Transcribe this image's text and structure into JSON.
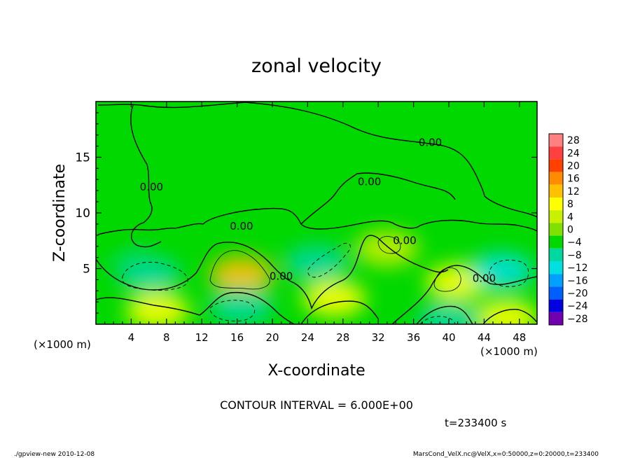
{
  "chart_data": {
    "type": "heatmap",
    "title": "zonal velocity",
    "xlabel": "X-coordinate",
    "ylabel": "Z-coordinate",
    "x_unit_left": "(×1000 m)",
    "x_unit_right": "(×1000 m)",
    "xlim": [
      0,
      50
    ],
    "ylim": [
      0,
      20
    ],
    "x_ticks": [
      4,
      8,
      12,
      16,
      20,
      24,
      28,
      32,
      36,
      40,
      44,
      48
    ],
    "y_ticks": [
      5,
      10,
      15
    ],
    "contour_interval_label": "CONTOUR INTERVAL = 6.000E+00",
    "contour_labels": [
      {
        "text": "0.00",
        "x": 37.9,
        "z": 16.0
      },
      {
        "text": "0.00",
        "x": 31.0,
        "z": 12.5
      },
      {
        "text": "0.00",
        "x": 16.5,
        "z": 8.5
      },
      {
        "text": "0.00",
        "x": 6.3,
        "z": 12.0
      },
      {
        "text": "0.00",
        "x": 21.0,
        "z": 4.0
      },
      {
        "text": "0.00",
        "x": 35.0,
        "z": 7.2
      },
      {
        "text": "0.00",
        "x": 44.0,
        "z": 3.8
      }
    ],
    "colorbar": {
      "levels": [
        28,
        24,
        20,
        16,
        12,
        8,
        4,
        0,
        -4,
        -8,
        -12,
        -16,
        -20,
        -24,
        -28
      ],
      "colors": [
        "#ff8080",
        "#ff4040",
        "#ff4000",
        "#ff8c00",
        "#ffc000",
        "#ffff00",
        "#c8f000",
        "#80e000",
        "#00d800",
        "#00d8a0",
        "#00e0e0",
        "#00a0ff",
        "#0060ff",
        "#0000e0",
        "#7000b0"
      ]
    },
    "field_extrema": [
      {
        "x": 16.5,
        "z": 4.5,
        "value": 10
      },
      {
        "x": 7.0,
        "z": 1.2,
        "value": 8
      },
      {
        "x": 41.0,
        "z": 3.8,
        "value": 6
      },
      {
        "x": 27.0,
        "z": 2.3,
        "value": 6
      },
      {
        "x": 33.0,
        "z": 6.8,
        "value": 5
      },
      {
        "x": 46.5,
        "z": 0.6,
        "value": 8
      },
      {
        "x": 6.0,
        "z": 4.5,
        "value": -10
      },
      {
        "x": 16.5,
        "z": 1.6,
        "value": -10
      },
      {
        "x": 25.0,
        "z": 5.5,
        "value": -8
      },
      {
        "x": 46.0,
        "z": 4.8,
        "value": -12
      },
      {
        "x": 40.0,
        "z": 0.4,
        "value": -10
      },
      {
        "x": 2.0,
        "z": 7.0,
        "value": -5
      }
    ],
    "background_value": 0,
    "time_label": "t=233400  s"
  },
  "footer": {
    "left": "./gpview-new   2010-12-08",
    "right": "MarsCond_VelX.nc@VelX,x=0:50000,z=0:20000,t=233400"
  }
}
